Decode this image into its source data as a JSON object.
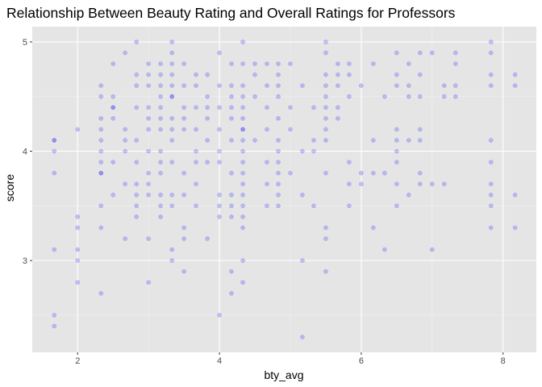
{
  "chart_data": {
    "type": "scatter",
    "title": "Relationship Between Beauty Rating and Overall Ratings for Professors",
    "xlabel": "bty_avg",
    "ylabel": "score",
    "xlim": [
      1.36,
      8.47
    ],
    "ylim": [
      2.16,
      5.14
    ],
    "xticks": [
      2,
      4,
      6,
      8
    ],
    "yticks": [
      3,
      4,
      5
    ],
    "xtick_labels": [
      "2",
      "4",
      "6",
      "8"
    ],
    "ytick_labels": [
      "3",
      "4",
      "5"
    ],
    "grid": true,
    "background": "#e5e5e5",
    "point_color": "#0000ff",
    "point_alpha": 0.2,
    "x": [
      1.67,
      1.67,
      1.67,
      1.67,
      1.67,
      1.67,
      1.67,
      2.0,
      2.0,
      2.0,
      2.0,
      2.0,
      2.0,
      2.33,
      2.33,
      2.33,
      2.33,
      2.33,
      2.33,
      2.33,
      2.33,
      2.33,
      2.33,
      2.33,
      2.33,
      2.5,
      2.5,
      2.5,
      2.5,
      2.5,
      2.5,
      2.5,
      2.67,
      2.67,
      2.67,
      2.67,
      2.67,
      2.67,
      2.83,
      2.83,
      2.83,
      2.83,
      2.83,
      2.83,
      2.83,
      2.83,
      2.83,
      2.83,
      3.0,
      3.0,
      3.0,
      3.0,
      3.0,
      3.0,
      3.0,
      3.0,
      3.0,
      3.0,
      3.0,
      3.0,
      3.17,
      3.17,
      3.17,
      3.17,
      3.17,
      3.17,
      3.17,
      3.17,
      3.17,
      3.17,
      3.17,
      3.17,
      3.17,
      3.33,
      3.33,
      3.33,
      3.33,
      3.33,
      3.33,
      3.33,
      3.33,
      3.33,
      3.33,
      3.33,
      3.33,
      3.33,
      3.33,
      3.33,
      3.5,
      3.5,
      3.5,
      3.5,
      3.5,
      3.5,
      3.5,
      3.5,
      3.5,
      3.5,
      3.67,
      3.67,
      3.67,
      3.67,
      3.67,
      3.67,
      3.67,
      3.67,
      3.83,
      3.83,
      3.83,
      3.83,
      3.83,
      3.83,
      3.83,
      4.0,
      4.0,
      4.0,
      4.0,
      4.0,
      4.0,
      4.0,
      4.0,
      4.0,
      4.0,
      4.17,
      4.17,
      4.17,
      4.17,
      4.17,
      4.17,
      4.17,
      4.17,
      4.17,
      4.17,
      4.17,
      4.17,
      4.33,
      4.33,
      4.33,
      4.33,
      4.33,
      4.33,
      4.33,
      4.33,
      4.33,
      4.33,
      4.33,
      4.33,
      4.33,
      4.33,
      4.33,
      4.33,
      4.33,
      4.33,
      4.33,
      4.5,
      4.5,
      4.5,
      4.5,
      4.67,
      4.67,
      4.67,
      4.67,
      4.67,
      4.67,
      4.67,
      4.83,
      4.83,
      4.83,
      4.83,
      4.83,
      4.83,
      4.83,
      4.83,
      4.83,
      4.83,
      4.83,
      4.83,
      5.0,
      5.0,
      5.0,
      5.0,
      5.17,
      5.17,
      5.17,
      5.17,
      5.17,
      5.33,
      5.33,
      5.33,
      5.33,
      5.5,
      5.5,
      5.5,
      5.5,
      5.5,
      5.5,
      5.5,
      5.5,
      5.5,
      5.5,
      5.5,
      5.5,
      5.5,
      5.67,
      5.67,
      5.67,
      5.67,
      5.67,
      5.83,
      5.83,
      5.83,
      5.83,
      5.83,
      5.83,
      6.0,
      6.0,
      6.0,
      6.17,
      6.17,
      6.17,
      6.17,
      6.33,
      6.33,
      6.33,
      6.5,
      6.5,
      6.5,
      6.5,
      6.5,
      6.5,
      6.5,
      6.5,
      6.5,
      6.67,
      6.67,
      6.67,
      6.67,
      6.67,
      6.83,
      6.83,
      6.83,
      6.83,
      6.83,
      6.83,
      6.83,
      7.0,
      7.0,
      7.0,
      7.17,
      7.17,
      7.17,
      7.33,
      7.33,
      7.33,
      7.33,
      7.83,
      7.83,
      7.83,
      7.83,
      7.83,
      7.83,
      7.83,
      7.83,
      7.83,
      7.83,
      8.17,
      8.17,
      8.17,
      8.17
    ],
    "y": [
      4.1,
      4.0,
      3.8,
      3.1,
      2.5,
      2.4,
      4.1,
      4.2,
      3.4,
      3.3,
      3.1,
      3.0,
      2.8,
      4.6,
      4.5,
      4.3,
      4.1,
      4.0,
      3.9,
      3.8,
      3.5,
      3.3,
      2.7,
      4.2,
      3.8,
      4.8,
      4.5,
      4.4,
      4.3,
      3.9,
      3.6,
      4.4,
      4.9,
      4.2,
      4.1,
      3.7,
      3.2,
      4.0,
      5.0,
      4.7,
      4.6,
      4.4,
      4.1,
      3.9,
      3.7,
      3.6,
      3.5,
      3.4,
      4.8,
      4.7,
      4.6,
      4.4,
      4.3,
      4.2,
      4.0,
      3.8,
      3.7,
      3.6,
      3.2,
      2.8,
      4.8,
      4.7,
      4.6,
      4.5,
      4.4,
      4.3,
      4.2,
      4.0,
      3.9,
      3.8,
      3.6,
      3.5,
      3.4,
      5.0,
      4.9,
      4.8,
      4.7,
      4.6,
      4.5,
      4.3,
      4.2,
      4.1,
      3.9,
      3.6,
      3.5,
      3.1,
      3.0,
      4.5,
      4.8,
      4.6,
      4.4,
      4.3,
      4.2,
      3.8,
      3.6,
      3.3,
      3.2,
      2.9,
      4.7,
      4.6,
      4.4,
      4.2,
      4.0,
      3.9,
      3.7,
      3.5,
      4.7,
      4.5,
      4.4,
      4.3,
      4.1,
      3.9,
      3.2,
      4.9,
      4.6,
      4.4,
      4.2,
      4.0,
      3.9,
      3.6,
      3.5,
      3.4,
      2.5,
      4.8,
      4.6,
      4.5,
      4.4,
      4.3,
      4.1,
      3.8,
      3.6,
      3.5,
      3.4,
      2.9,
      2.7,
      5.0,
      4.8,
      4.6,
      4.5,
      4.4,
      4.3,
      4.2,
      4.1,
      4.0,
      3.9,
      3.8,
      3.7,
      3.6,
      3.5,
      3.4,
      3.3,
      3.0,
      2.8,
      4.2,
      4.8,
      4.7,
      4.5,
      4.1,
      4.8,
      4.6,
      4.4,
      4.2,
      3.9,
      3.7,
      3.5,
      4.8,
      4.7,
      4.6,
      4.5,
      4.3,
      4.1,
      4.0,
      3.9,
      3.8,
      3.7,
      3.6,
      3.5,
      4.8,
      4.4,
      4.2,
      3.8,
      4.0,
      3.6,
      3.0,
      2.3,
      4.6,
      4.4,
      4.1,
      4.0,
      3.5,
      5.0,
      4.9,
      4.7,
      4.6,
      4.5,
      4.4,
      4.3,
      4.2,
      4.1,
      3.8,
      3.3,
      3.2,
      2.9,
      4.8,
      4.7,
      4.6,
      4.4,
      4.3,
      4.8,
      4.7,
      4.5,
      3.9,
      3.7,
      3.5,
      4.6,
      3.8,
      3.7,
      4.8,
      4.1,
      3.8,
      3.3,
      4.5,
      3.8,
      3.1,
      4.9,
      4.7,
      4.6,
      4.2,
      4.1,
      4.0,
      3.9,
      3.7,
      3.5,
      4.8,
      4.6,
      4.5,
      4.1,
      3.6,
      4.9,
      4.7,
      4.5,
      4.2,
      4.1,
      3.8,
      3.7,
      4.9,
      3.7,
      3.1,
      4.6,
      4.5,
      3.7,
      4.8,
      4.6,
      4.5,
      4.9,
      5.0,
      4.9,
      4.7,
      4.6,
      4.1,
      3.9,
      3.7,
      3.6,
      3.5,
      3.3,
      4.7,
      4.6,
      3.6,
      3.3
    ]
  }
}
